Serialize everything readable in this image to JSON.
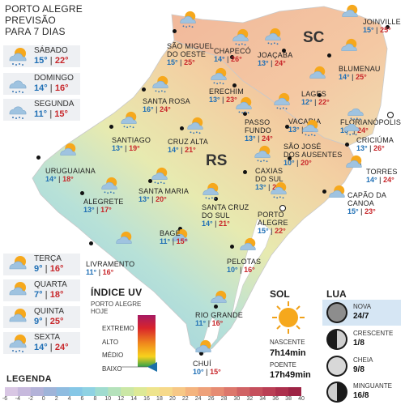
{
  "header": {
    "line1": "PORTO ALEGRE",
    "line2": "PREVISÃO",
    "line3": "PARA 7 DIAS"
  },
  "states": {
    "sc": "SC",
    "rs": "RS"
  },
  "forecast": [
    {
      "day": "SÁBADO",
      "min": "15°",
      "max": "22°",
      "icon": "sun-cloud-rain-icon"
    },
    {
      "day": "DOMINGO",
      "min": "14°",
      "max": "16°",
      "icon": "cloud-rain-icon"
    },
    {
      "day": "SEGUNDA",
      "min": "11°",
      "max": "15°",
      "icon": "cloud-rain-icon"
    },
    {
      "day": "TERÇA",
      "min": "9°",
      "max": "16°",
      "icon": "sun-cloud-icon"
    },
    {
      "day": "QUARTA",
      "min": "7°",
      "max": "18°",
      "icon": "sun-cloud-icon"
    },
    {
      "day": "QUINTA",
      "min": "9°",
      "max": "25°",
      "icon": "sun-cloud-icon"
    },
    {
      "day": "SEXTA",
      "min": "14°",
      "max": "24°",
      "icon": "sun-cloud-rain-icon"
    }
  ],
  "cities": [
    {
      "name": "JOINVILLE",
      "min": "15°",
      "max": "25°",
      "icon": "sun-cloud-icon"
    },
    {
      "name": "SÃO MIGUEL",
      "name2": "DO OESTE",
      "min": "15°",
      "max": "25°",
      "icon": "sun-cloud-rain-icon"
    },
    {
      "name": "CHAPECÓ",
      "min": "14°",
      "max": "26°",
      "icon": "sun-cloud-rain-icon"
    },
    {
      "name": "JOAÇABA",
      "min": "13°",
      "max": "24°",
      "icon": "sun-cloud-rain-icon"
    },
    {
      "name": "BLUMENAU",
      "min": "14°",
      "max": "25°",
      "icon": "sun-cloud-icon"
    },
    {
      "name": "SANTA ROSA",
      "min": "16°",
      "max": "24°",
      "icon": "sun-cloud-rain-icon"
    },
    {
      "name": "ERECHIM",
      "min": "13°",
      "max": "23°",
      "icon": "sun-cloud-rain-icon"
    },
    {
      "name": "LAGES",
      "min": "12°",
      "max": "22°",
      "icon": "sun-cloud-icon"
    },
    {
      "name": "FLORIANÓPOLIS",
      "min": "15°",
      "max": "24°",
      "icon": "cloud-rain-icon"
    },
    {
      "name": "SANTIAGO",
      "min": "13°",
      "max": "19°",
      "icon": "sun-cloud-rain-icon"
    },
    {
      "name": "CRUZ ALTA",
      "min": "14°",
      "max": "21°",
      "icon": "sun-cloud-rain-icon"
    },
    {
      "name": "PASSO",
      "name2": "FUNDO",
      "min": "13°",
      "max": "24°",
      "icon": "sun-cloud-rain-icon"
    },
    {
      "name": "VACARIA",
      "min": "13°",
      "max": "22°",
      "icon": "sun-cloud-rain-icon"
    },
    {
      "name": "SÃO JOSÉ",
      "name2": "DOS AUSENTES",
      "min": "10°",
      "max": "20°",
      "icon": "sun-cloud-rain-icon"
    },
    {
      "name": "CRICIÚMA",
      "min": "13°",
      "max": "26°",
      "icon": "cloud-rain-icon"
    },
    {
      "name": "URUGUAIANA",
      "min": "14°",
      "max": "18°",
      "icon": "sun-cloud-icon"
    },
    {
      "name": "CAXIAS",
      "name2": "DO SUL",
      "min": "13°",
      "max": "24°",
      "icon": "sun-cloud-rain-icon"
    },
    {
      "name": "TORRES",
      "min": "14°",
      "max": "24°",
      "icon": "sun-cloud-icon"
    },
    {
      "name": "ALEGRETE",
      "min": "13°",
      "max": "17°",
      "icon": "sun-cloud-rain-icon"
    },
    {
      "name": "SANTA MARIA",
      "min": "13°",
      "max": "20°",
      "icon": "sun-cloud-rain-icon"
    },
    {
      "name": "SANTA CRUZ",
      "name2": "DO SUL",
      "min": "14°",
      "max": "21°",
      "icon": "sun-cloud-rain-icon"
    },
    {
      "name": "PORTO",
      "name2": "ALEGRE",
      "min": "15°",
      "max": "22°",
      "icon": "sun-cloud-rain-icon"
    },
    {
      "name": "CAPÃO DA",
      "name2": "CANOA",
      "min": "15°",
      "max": "23°",
      "icon": "sun-cloud-icon"
    },
    {
      "name": "LIVRAMENTO",
      "min": "11°",
      "max": "16°",
      "icon": "sun-cloud-icon"
    },
    {
      "name": "BAGÉ",
      "min": "11°",
      "max": "15°",
      "icon": "sun-cloud-icon"
    },
    {
      "name": "PELOTAS",
      "min": "10°",
      "max": "16°",
      "icon": "sun-cloud-icon"
    },
    {
      "name": "RIO GRANDE",
      "min": "11°",
      "max": "16°",
      "icon": "sun-cloud-icon"
    },
    {
      "name": "CHUÍ",
      "min": "10°",
      "max": "15°",
      "icon": "sun-cloud-icon"
    }
  ],
  "uv": {
    "title": "ÍNDICE UV",
    "sub1": "PORTO ALEGRE",
    "sub2": "HOJE",
    "levels": [
      "EXTREMO",
      "ALTO",
      "MÉDIO",
      "BAIXO"
    ],
    "current": "BAIXO"
  },
  "sun": {
    "title": "SOL",
    "rise_label": "NASCENTE",
    "rise": "7h14min",
    "set_label": "POENTE",
    "set": "17h49min"
  },
  "moon": {
    "title": "LUA",
    "phases": [
      {
        "name": "NOVA",
        "date": "24/7",
        "icon": "moon-new-icon"
      },
      {
        "name": "CRESCENTE",
        "date": "1/8",
        "icon": "moon-first-quarter-icon"
      },
      {
        "name": "CHEIA",
        "date": "9/8",
        "icon": "moon-full-icon"
      },
      {
        "name": "MINGUANTE",
        "date": "16/8",
        "icon": "moon-last-quarter-icon"
      }
    ]
  },
  "legend": {
    "title": "LEGENDA",
    "ticks": [
      "-6",
      "-4",
      "-2",
      "0",
      "2",
      "4",
      "6",
      "8",
      "10",
      "12",
      "14",
      "16",
      "18",
      "20",
      "22",
      "24",
      "26",
      "28",
      "30",
      "32",
      "34",
      "36",
      "38",
      "40"
    ],
    "colors": [
      "#d9c7e4",
      "#c7b9dd",
      "#b3b2d8",
      "#9fb4d9",
      "#8fbce0",
      "#86c7e6",
      "#8fd2e3",
      "#a0dccf",
      "#b5e2bb",
      "#cbe7a6",
      "#dde996",
      "#eee48d",
      "#f6d98a",
      "#f7c886",
      "#f4b47f",
      "#eea17a",
      "#e68c73",
      "#dc776c",
      "#d06365",
      "#c5505d",
      "#ba3f55",
      "#ac304d",
      "#9d2445"
    ]
  }
}
